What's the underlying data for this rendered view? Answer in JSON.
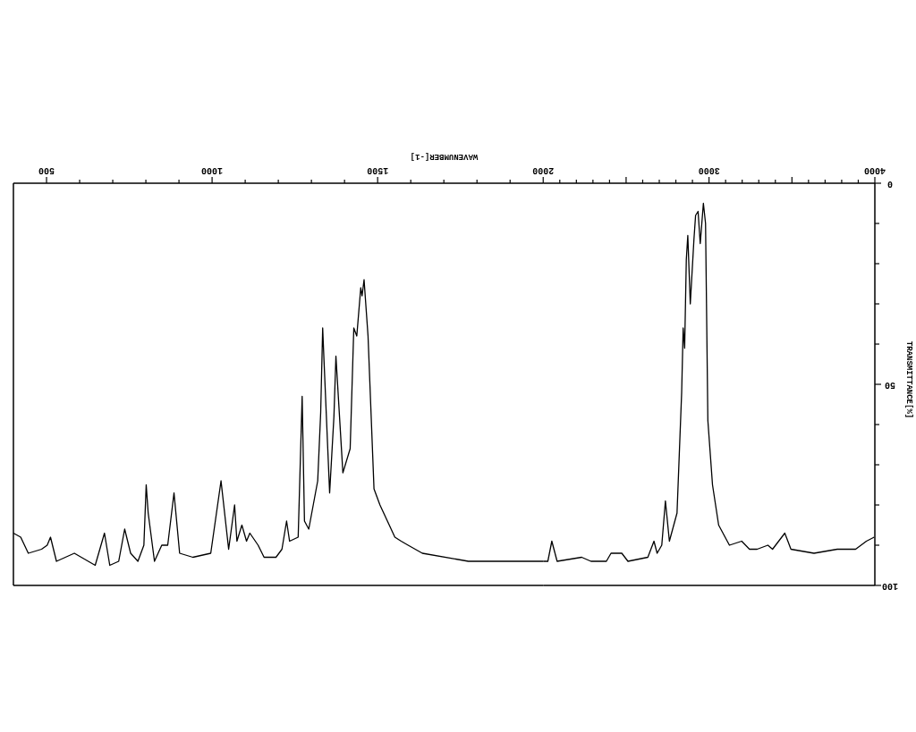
{
  "chart_data": [
    {
      "type": "line",
      "xlabel": "WAVENUMBER[-1]",
      "xlim": [
        400,
        2000
      ],
      "ylim": [
        100,
        0
      ],
      "tick_labels": "x",
      "xticks": [
        500,
        {
          "value": 600,
          "label": null
        },
        {
          "value": 700,
          "label": null
        },
        {
          "value": 800,
          "label": null
        },
        {
          "value": 900,
          "label": null
        },
        1000,
        {
          "value": 1100,
          "label": null
        },
        {
          "value": 1200,
          "label": null
        },
        {
          "value": 1300,
          "label": null
        },
        {
          "value": 1400,
          "label": null
        },
        1500,
        {
          "value": 1600,
          "label": null
        },
        {
          "value": 1700,
          "label": null
        },
        {
          "value": 1800,
          "label": null
        },
        {
          "value": 1900,
          "label": null
        },
        2000
      ],
      "grid": false,
      "marker": "none",
      "line_style": "solid",
      "series": [
        {
          "color": "#000000",
          "x": [
            400,
            422,
            445,
            485,
            502,
            512,
            530,
            584,
            647,
            675,
            691,
            718,
            736,
            754,
            776,
            794,
            801,
            807,
            826,
            848,
            866,
            885,
            902,
            942,
            996,
            1027,
            1050,
            1068,
            1075,
            1090,
            1104,
            1114,
            1139,
            1157,
            1193,
            1211,
            1225,
            1234,
            1260,
            1272,
            1279,
            1292,
            1319,
            1328,
            1334,
            1338,
            1355,
            1368,
            1374,
            1395,
            1417,
            1428,
            1437,
            1449,
            1453,
            1459,
            1471,
            1489,
            1507,
            1552,
            1571,
            1592,
            1635,
            1774,
            2000
          ],
          "values": [
            87,
            88,
            92,
            91,
            90,
            88,
            94,
            92,
            95,
            87,
            95,
            94,
            86,
            92,
            94,
            90,
            75,
            82,
            94,
            90,
            90,
            77,
            92,
            93,
            92,
            74,
            91,
            80,
            89,
            85,
            89,
            87,
            90,
            93,
            93,
            91,
            84,
            89,
            88,
            53,
            84,
            86,
            74,
            57,
            36,
            44,
            77,
            58,
            43,
            72,
            66,
            36,
            38,
            26,
            28,
            24,
            38,
            76,
            80,
            88,
            89,
            90,
            92,
            94,
            94
          ]
        }
      ]
    },
    {
      "type": "line",
      "ylabel": "TRANSMITTANCE[%]",
      "xlim": [
        2000,
        4000
      ],
      "ylim": [
        100,
        0
      ],
      "xticks": [
        {
          "value": 2100,
          "label": null
        },
        {
          "value": 2200,
          "label": null
        },
        {
          "value": 2300,
          "label": null
        },
        {
          "value": 2400,
          "label": null
        },
        {
          "value": 2500,
          "label": null
        },
        {
          "value": 2600,
          "label": null
        },
        {
          "value": 2700,
          "label": null
        },
        {
          "value": 2800,
          "label": null
        },
        {
          "value": 2900,
          "label": null
        },
        3000,
        {
          "value": 3100,
          "label": null
        },
        {
          "value": 3200,
          "label": null
        },
        {
          "value": 3300,
          "label": null
        },
        {
          "value": 3400,
          "label": null
        },
        {
          "value": 3500,
          "label": null
        },
        {
          "value": 3600,
          "label": null
        },
        {
          "value": 3700,
          "label": null
        },
        {
          "value": 3800,
          "label": null
        },
        {
          "value": 3900,
          "label": null
        },
        4000
      ],
      "yticks": [
        0,
        {
          "value": 10,
          "label": null
        },
        {
          "value": 20,
          "label": null
        },
        {
          "value": 30,
          "label": null
        },
        {
          "value": 40,
          "label": null
        },
        50,
        {
          "value": 60,
          "label": null
        },
        {
          "value": 70,
          "label": null
        },
        {
          "value": 80,
          "label": null
        },
        {
          "value": 90,
          "label": null
        },
        100
      ],
      "grid": false,
      "marker": "none",
      "line_style": "solid",
      "series": [
        {
          "color": "#000000",
          "x": [
            2000,
            2028,
            2052,
            2084,
            2232,
            2288,
            2381,
            2409,
            2474,
            2511,
            2631,
            2668,
            2687,
            2715,
            2737,
            2761,
            2807,
            2835,
            2844,
            2853,
            2863,
            2872,
            2887,
            2909,
            2919,
            2934,
            2947,
            2966,
            2979,
            2993,
            3021,
            3058,
            3123,
            3197,
            3244,
            3290,
            3355,
            3383,
            3457,
            3494,
            3633,
            3773,
            3884,
            3949,
            3996
          ],
          "values": [
            94,
            94,
            89,
            94,
            93,
            94,
            94,
            92,
            92,
            94,
            93,
            89,
            92,
            90,
            79,
            89,
            82,
            52,
            36,
            41,
            19,
            13,
            30,
            14,
            8,
            7,
            15,
            5,
            10,
            59,
            75,
            85,
            90,
            89,
            91,
            91,
            90,
            91,
            87,
            91,
            92,
            91,
            91,
            89,
            88
          ]
        }
      ]
    }
  ]
}
